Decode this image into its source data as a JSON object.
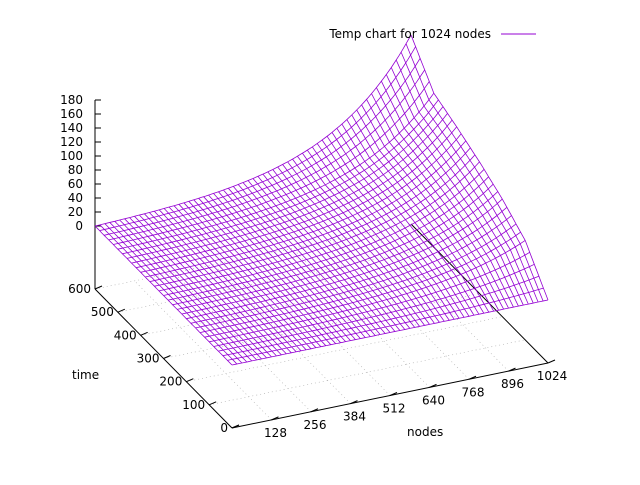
{
  "chart_data": {
    "type": "surface",
    "title": "",
    "legend": {
      "label": "Temp chart for 1024 nodes",
      "placement": "top-right"
    },
    "series": [
      {
        "name": "Temp chart for 1024 nodes",
        "color": "#9400d3"
      }
    ],
    "x_axis": {
      "label": "nodes",
      "range": [
        0,
        1024
      ],
      "ticks": [
        0,
        128,
        256,
        384,
        512,
        640,
        768,
        896,
        1024
      ],
      "tick_labels": [
        "",
        "128",
        "256",
        "384",
        "512",
        "640",
        "768",
        "896",
        "1024"
      ]
    },
    "y_axis": {
      "label": "time",
      "range": [
        0,
        600
      ],
      "ticks": [
        0,
        100,
        200,
        300,
        400,
        500,
        600
      ],
      "tick_labels": [
        "0",
        "100",
        "200",
        "300",
        "400",
        "500",
        "600"
      ]
    },
    "z_axis": {
      "label": "",
      "range": [
        0,
        180
      ],
      "ticks": [
        0,
        20,
        40,
        60,
        80,
        100,
        120,
        140,
        160,
        180
      ],
      "tick_labels": [
        "0",
        "20",
        "40",
        "60",
        "80",
        "100",
        "120",
        "140",
        "160",
        "180"
      ]
    },
    "grid": true,
    "surface": {
      "x_samples": 64,
      "y_samples": 30,
      "z_at_x0": 0,
      "z_at_x1024": [
        {
          "time": 0,
          "temp": 0
        },
        {
          "time": 100,
          "temp": 52
        },
        {
          "time": 200,
          "temp": 78
        },
        {
          "time": 300,
          "temp": 98
        },
        {
          "time": 400,
          "temp": 115
        },
        {
          "time": 500,
          "temp": 130
        },
        {
          "time": 600,
          "temp": 180
        }
      ]
    }
  }
}
